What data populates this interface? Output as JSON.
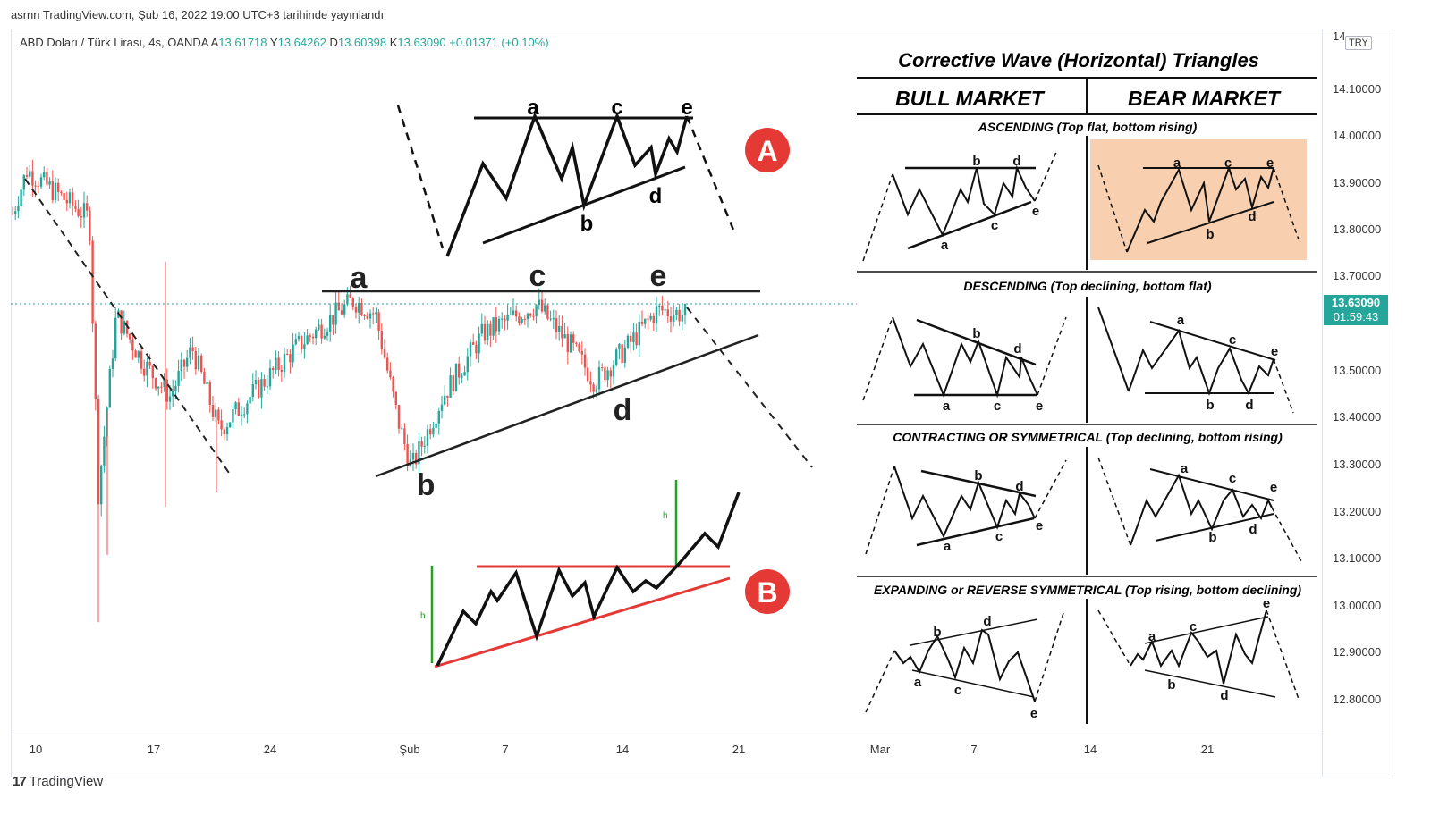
{
  "header": {
    "published": "asrnn TradingView.com, Şub 16, 2022 19:00 UTC+3 tarihinde yayınlandı"
  },
  "legend": {
    "symbol": "ABD Doları / Türk Lirası, 4s, OANDA",
    "open_label": "A",
    "open": "13.61718",
    "high_label": "Y",
    "high": "13.64262",
    "low_label": "D",
    "low": "13.60398",
    "close_label": "K",
    "close": "13.63090",
    "change": "+0.01371 (+0.10%)"
  },
  "price_axis": {
    "currency": "TRY",
    "top_partial": "14.20000",
    "ticks": [
      "14.10000",
      "14.00000",
      "13.90000",
      "13.80000",
      "13.70000",
      "13.50000",
      "13.40000",
      "13.30000",
      "13.20000",
      "13.10000",
      "13.00000",
      "12.90000",
      "12.80000"
    ],
    "last_price": "13.63090",
    "countdown": "01:59:43"
  },
  "time_axis": {
    "ticks": [
      "10",
      "17",
      "24",
      "Şub",
      "7",
      "14",
      "21",
      "Mar",
      "7",
      "14",
      "21"
    ]
  },
  "branding": {
    "logo_text": "TradingView"
  },
  "colors": {
    "up": "#26a69a",
    "down": "#ef5350",
    "badge": "#e53935",
    "highlight": "#f8d0b0"
  },
  "annotations": {
    "wave_labels": [
      "a",
      "b",
      "c",
      "d",
      "e"
    ],
    "badge_a": "A",
    "badge_b": "B",
    "h_label": "h"
  },
  "panel": {
    "title": "Corrective Wave (Horizontal) Triangles",
    "col_bull": "BULL MARKET",
    "col_bear": "BEAR MARKET",
    "sections": [
      "ASCENDING (Top flat, bottom rising)",
      "DESCENDING (Top declining, bottom flat)",
      "CONTRACTING OR SYMMETRICAL (Top declining, bottom rising)",
      "EXPANDING or REVERSE SYMMETRICAL (Top rising, bottom declining)"
    ]
  },
  "chart_data": {
    "type": "candlestick",
    "symbol": "ABD Doları / Türk Lirası",
    "interval": "4s",
    "ylim": [
      12.75,
      14.2
    ],
    "candles_approx": [
      {
        "x": "10",
        "o": 13.83,
        "c": 13.92
      },
      {
        "x": "11",
        "o": 13.92,
        "c": 13.82
      },
      {
        "x": "12",
        "o": 13.82,
        "c": 13.8
      },
      {
        "x": "13",
        "o": 13.8,
        "c": 13.24
      },
      {
        "x": "14",
        "o": 13.24,
        "c": 13.62
      },
      {
        "x": "15",
        "o": 13.62,
        "c": 13.52
      },
      {
        "x": "17",
        "o": 13.52,
        "c": 13.45
      },
      {
        "x": "19",
        "o": 13.45,
        "c": 13.55
      },
      {
        "x": "21",
        "o": 13.55,
        "c": 13.38
      },
      {
        "x": "24",
        "o": 13.38,
        "c": 13.47
      },
      {
        "x": "26",
        "o": 13.47,
        "c": 13.56
      },
      {
        "x": "28",
        "o": 13.56,
        "c": 13.65
      },
      {
        "x": "30",
        "o": 13.65,
        "c": 13.62
      },
      {
        "x": "1",
        "o": 13.62,
        "c": 13.4
      },
      {
        "x": "2",
        "o": 13.4,
        "c": 13.3
      },
      {
        "x": "4",
        "o": 13.3,
        "c": 13.45
      },
      {
        "x": "6",
        "o": 13.45,
        "c": 13.58
      },
      {
        "x": "8",
        "o": 13.58,
        "c": 13.64
      },
      {
        "x": "10",
        "o": 13.64,
        "c": 13.55
      },
      {
        "x": "12",
        "o": 13.55,
        "c": 13.48
      },
      {
        "x": "14",
        "o": 13.48,
        "c": 13.58
      },
      {
        "x": "16",
        "o": 13.58,
        "c": 13.63
      }
    ]
  }
}
